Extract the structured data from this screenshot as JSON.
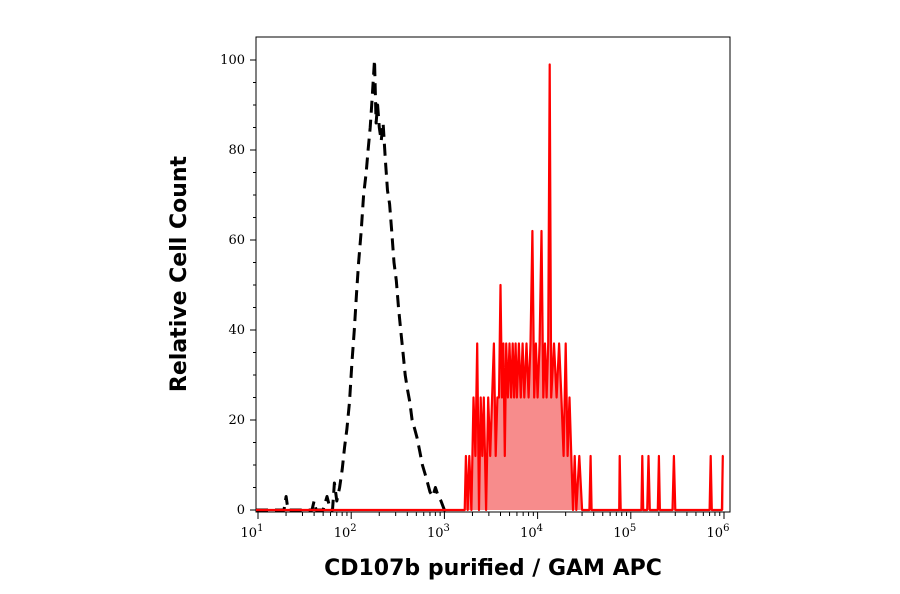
{
  "chart_data": {
    "type": "line",
    "title": "",
    "xlabel": "CD107b purified / GAM APC",
    "ylabel": "Relative Cell Count",
    "x_scale": "log",
    "xlim": [
      10,
      1000000
    ],
    "ylim": [
      0,
      100
    ],
    "grid": false,
    "legend": "none",
    "x_ticks": [
      {
        "base": "10",
        "exp": "1",
        "value": 10
      },
      {
        "base": "10",
        "exp": "2",
        "value": 100
      },
      {
        "base": "10",
        "exp": "3",
        "value": 1000
      },
      {
        "base": "10",
        "exp": "4",
        "value": 10000
      },
      {
        "base": "10",
        "exp": "5",
        "value": 100000
      },
      {
        "base": "10",
        "exp": "6",
        "value": 1000000
      }
    ],
    "y_ticks": [
      {
        "label": "0",
        "value": 0
      },
      {
        "label": "20",
        "value": 20
      },
      {
        "label": "40",
        "value": 40
      },
      {
        "label": "60",
        "value": 60
      },
      {
        "label": "80",
        "value": 80
      },
      {
        "label": "100",
        "value": 100
      }
    ],
    "series": [
      {
        "style": "dashed",
        "color": "#000000",
        "fill": "none",
        "points": [
          [
            7,
            0
          ],
          [
            19,
            0
          ],
          [
            20,
            3
          ],
          [
            21,
            0
          ],
          [
            38,
            0
          ],
          [
            40,
            2
          ],
          [
            42,
            0
          ],
          [
            50,
            0
          ],
          [
            55,
            3
          ],
          [
            60,
            0
          ],
          [
            63,
            0
          ],
          [
            66,
            6
          ],
          [
            70,
            2
          ],
          [
            75,
            5
          ],
          [
            80,
            9
          ],
          [
            85,
            14
          ],
          [
            90,
            18
          ],
          [
            96,
            24
          ],
          [
            102,
            33
          ],
          [
            108,
            40
          ],
          [
            114,
            48
          ],
          [
            120,
            55
          ],
          [
            128,
            62
          ],
          [
            136,
            70
          ],
          [
            145,
            75
          ],
          [
            152,
            80
          ],
          [
            160,
            85
          ],
          [
            167,
            91
          ],
          [
            173,
            96
          ],
          [
            178,
            100
          ],
          [
            185,
            86
          ],
          [
            192,
            90
          ],
          [
            200,
            85
          ],
          [
            210,
            82
          ],
          [
            220,
            86
          ],
          [
            232,
            78
          ],
          [
            245,
            71
          ],
          [
            258,
            68
          ],
          [
            272,
            62
          ],
          [
            288,
            55
          ],
          [
            305,
            51
          ],
          [
            322,
            45
          ],
          [
            340,
            40
          ],
          [
            360,
            35
          ],
          [
            380,
            30
          ],
          [
            400,
            27
          ],
          [
            425,
            24
          ],
          [
            450,
            20
          ],
          [
            480,
            18
          ],
          [
            510,
            16
          ],
          [
            545,
            13
          ],
          [
            580,
            10
          ],
          [
            620,
            8
          ],
          [
            660,
            6
          ],
          [
            700,
            4
          ],
          [
            750,
            3
          ],
          [
            800,
            5
          ],
          [
            860,
            3
          ],
          [
            920,
            2
          ],
          [
            1000,
            0
          ],
          [
            1100,
            0
          ]
        ]
      },
      {
        "style": "solid",
        "color": "#ff0000",
        "fill": "#f78c8c",
        "points": [
          [
            7,
            0
          ],
          [
            1650,
            0
          ],
          [
            1700,
            12
          ],
          [
            1780,
            0
          ],
          [
            1850,
            12
          ],
          [
            1950,
            0
          ],
          [
            2050,
            25
          ],
          [
            2150,
            12
          ],
          [
            2250,
            37
          ],
          [
            2350,
            0
          ],
          [
            2450,
            25
          ],
          [
            2550,
            12
          ],
          [
            2650,
            25
          ],
          [
            2800,
            0
          ],
          [
            2950,
            25
          ],
          [
            3100,
            12
          ],
          [
            3250,
            25
          ],
          [
            3400,
            37
          ],
          [
            3550,
            12
          ],
          [
            3700,
            25
          ],
          [
            3850,
            25
          ],
          [
            4000,
            50
          ],
          [
            4150,
            25
          ],
          [
            4300,
            37
          ],
          [
            4450,
            12
          ],
          [
            4600,
            37
          ],
          [
            4800,
            25
          ],
          [
            5000,
            37
          ],
          [
            5200,
            25
          ],
          [
            5400,
            37
          ],
          [
            5600,
            25
          ],
          [
            5800,
            37
          ],
          [
            6000,
            25
          ],
          [
            6300,
            37
          ],
          [
            6600,
            25
          ],
          [
            6900,
            37
          ],
          [
            7200,
            25
          ],
          [
            7600,
            37
          ],
          [
            8000,
            25
          ],
          [
            8400,
            37
          ],
          [
            8800,
            62
          ],
          [
            9200,
            25
          ],
          [
            9600,
            37
          ],
          [
            10000,
            25
          ],
          [
            10500,
            37
          ],
          [
            11000,
            62
          ],
          [
            11500,
            25
          ],
          [
            12000,
            37
          ],
          [
            12500,
            25
          ],
          [
            13000,
            37
          ],
          [
            13500,
            99
          ],
          [
            14000,
            25
          ],
          [
            15000,
            37
          ],
          [
            16000,
            25
          ],
          [
            17000,
            37
          ],
          [
            18000,
            25
          ],
          [
            19000,
            12
          ],
          [
            20000,
            37
          ],
          [
            21000,
            12
          ],
          [
            22000,
            25
          ],
          [
            23000,
            12
          ],
          [
            24000,
            0
          ],
          [
            25000,
            12
          ],
          [
            26000,
            0
          ],
          [
            28000,
            12
          ],
          [
            30000,
            0
          ],
          [
            36000,
            0
          ],
          [
            37000,
            12
          ],
          [
            38000,
            0
          ],
          [
            75000,
            0
          ],
          [
            76000,
            12
          ],
          [
            78000,
            0
          ],
          [
            130000,
            0
          ],
          [
            133000,
            12
          ],
          [
            136000,
            0
          ],
          [
            150000,
            0
          ],
          [
            155000,
            12
          ],
          [
            160000,
            0
          ],
          [
            195000,
            0
          ],
          [
            200000,
            12
          ],
          [
            205000,
            0
          ],
          [
            280000,
            0
          ],
          [
            290000,
            12
          ],
          [
            300000,
            0
          ],
          [
            700000,
            0
          ],
          [
            720000,
            12
          ],
          [
            740000,
            0
          ],
          [
            950000,
            0
          ],
          [
            970000,
            12
          ],
          [
            990000,
            12
          ]
        ]
      }
    ]
  }
}
